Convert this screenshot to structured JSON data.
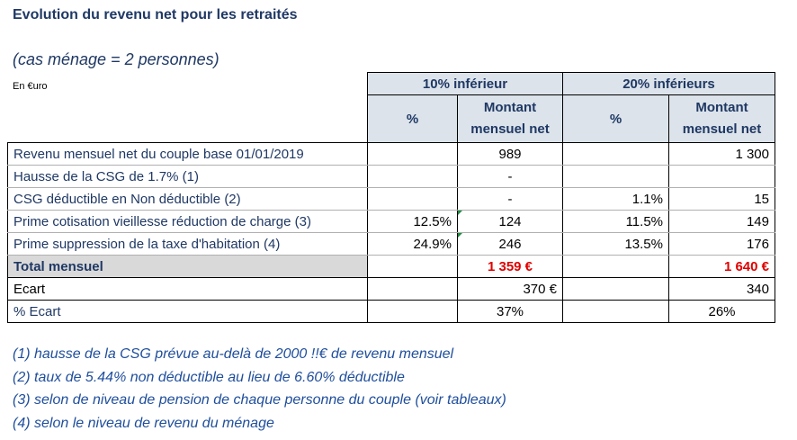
{
  "title": "Evolution du revenu net pour les retraités",
  "subtitle": "(cas ménage = 2 personnes)",
  "unit": "En €uro",
  "groups": [
    "10% inférieur",
    "20% inférieurs"
  ],
  "col_pct": "%",
  "col_amount": "Montant mensuel net",
  "col_amount_l1": "Montant",
  "col_amount_l2": "mensuel net",
  "rows": [
    {
      "label": "Revenu  mensuel  net  du couple base 01/01/2019",
      "p1": "",
      "a1": "989",
      "p2": "",
      "a2": "1 300"
    },
    {
      "label": "Hausse de la CSG de 1.7% (1)",
      "p1": "",
      "a1": "-",
      "p2": "",
      "a2": ""
    },
    {
      "label": "CSG déductible en Non déductible (2)",
      "p1": "",
      "a1": "-",
      "p2": "1.1%",
      "a2": "15"
    },
    {
      "label": "Prime  cotisation vieillesse réduction de charge (3)",
      "p1": "12.5%",
      "a1": "124",
      "p2": "11.5%",
      "a2": "149"
    },
    {
      "label": "Prime suppression de la taxe d'habitation (4)",
      "p1": "24.9%",
      "a1": "246",
      "p2": "13.5%",
      "a2": "176"
    }
  ],
  "total": {
    "label": "Total  mensuel",
    "a1": "1 359 €",
    "a2": "1 640 €"
  },
  "ecart": {
    "label": "Ecart",
    "a1": "370 €",
    "a2": "340"
  },
  "pct_ecart": {
    "label": "% Ecart",
    "a1": "37%",
    "a2": "26%"
  },
  "notes": [
    "(1) hausse de la CSG prévue au-delà de 2000 !!€ de revenu mensuel",
    "(2) taux de 5.44% non déductible au lieu de 6.60% déductible",
    "(3) selon de niveau de pension de chaque personne du couple  (voir tableaux)",
    "(4) selon le niveau de revenu du ménage"
  ],
  "colors": {
    "heading": "#1f3864",
    "header_bg": "#dce3ea",
    "total_bg": "#d9d9d9",
    "total_value": "#e00000",
    "notes": "#1f4e9c"
  }
}
